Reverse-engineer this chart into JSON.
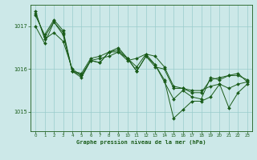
{
  "title": "Graphe pression niveau de la mer (hPa)",
  "background_color": "#cce8e8",
  "grid_color": "#99cccc",
  "line_color": "#1a5c1a",
  "xlim": [
    -0.5,
    23.5
  ],
  "ylim": [
    1014.55,
    1017.5
  ],
  "yticks": [
    1015,
    1016,
    1017
  ],
  "xticks": [
    0,
    1,
    2,
    3,
    4,
    5,
    6,
    7,
    8,
    9,
    10,
    11,
    12,
    13,
    14,
    15,
    16,
    17,
    18,
    19,
    20,
    21,
    22,
    23
  ],
  "series": [
    [
      1017.3,
      1016.75,
      1017.1,
      1016.85,
      1015.95,
      1015.85,
      1016.2,
      1016.15,
      1016.4,
      1016.45,
      1016.25,
      1015.95,
      1016.3,
      1016.05,
      1016.0,
      1015.55,
      1015.55,
      1015.45,
      1015.45,
      1015.75,
      1015.8,
      1015.85,
      1015.9,
      1015.7
    ],
    [
      1017.35,
      1016.7,
      1016.85,
      1016.65,
      1016.0,
      1015.85,
      1016.2,
      1016.25,
      1016.3,
      1016.4,
      1016.2,
      1016.25,
      1016.35,
      1016.3,
      1016.05,
      1015.6,
      1015.55,
      1015.5,
      1015.5,
      1015.6,
      1015.65,
      1015.55,
      1015.65,
      1015.7
    ],
    [
      1017.25,
      1016.8,
      1017.15,
      1016.9,
      1015.95,
      1015.9,
      1016.25,
      1016.3,
      1016.4,
      1016.4,
      1016.25,
      1016.05,
      1016.35,
      1016.1,
      1015.75,
      1014.85,
      1015.05,
      1015.25,
      1015.25,
      1015.35,
      1015.65,
      1015.1,
      1015.45,
      1015.65
    ],
    [
      1017.0,
      1016.6,
      1017.1,
      1016.8,
      1015.95,
      1015.8,
      1016.2,
      1016.15,
      1016.4,
      1016.5,
      1016.25,
      1015.95,
      1016.3,
      1016.1,
      1015.7,
      1015.3,
      1015.5,
      1015.35,
      1015.3,
      1015.8,
      1015.75,
      1015.85,
      1015.85,
      1015.75
    ]
  ]
}
